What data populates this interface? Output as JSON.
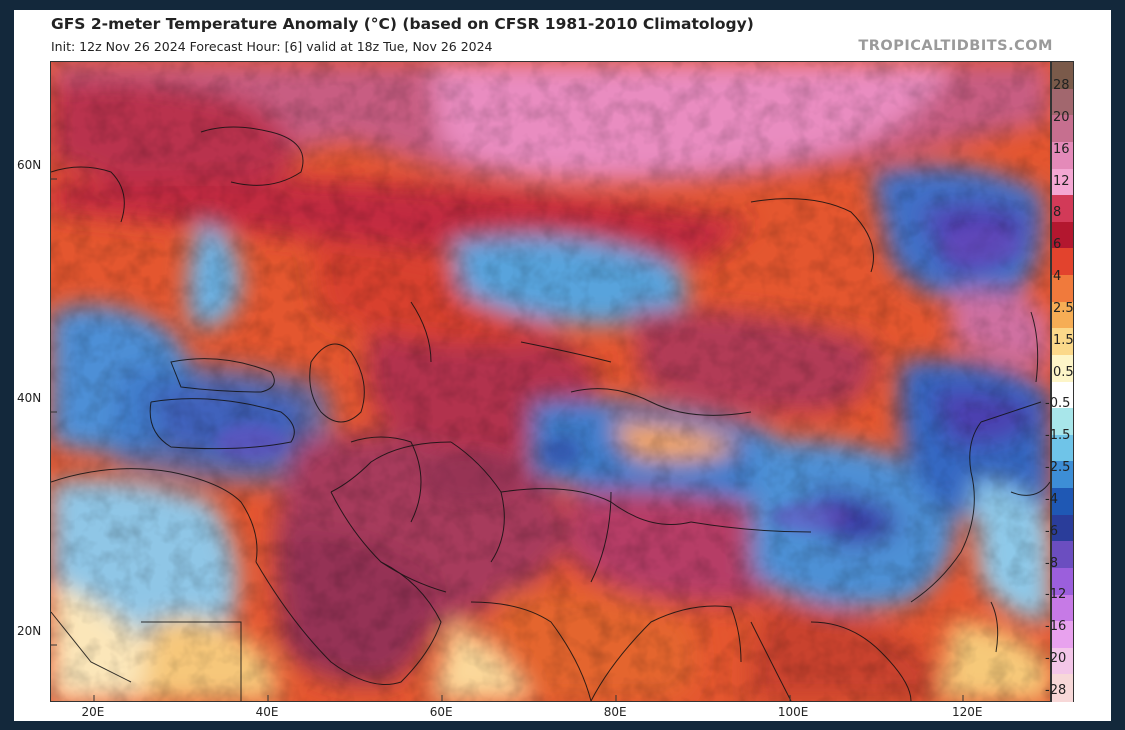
{
  "header": {
    "title": "GFS 2-meter Temperature Anomaly (°C) (based on CFSR 1981-2010 Climatology)",
    "subtitle": "Init: 12z Nov 26 2024   Forecast Hour: [6]   valid at 18z Tue, Nov 26 2024",
    "brand": "TROPICALTIDBITS.COM"
  },
  "map": {
    "lon_range": [
      15,
      130
    ],
    "lat_range": [
      14,
      69
    ],
    "lat_labels": [
      "60N",
      "40N",
      "20N"
    ],
    "lat_values": [
      60,
      40,
      20
    ],
    "lon_labels": [
      "20E",
      "40E",
      "60E",
      "80E",
      "100E",
      "120E"
    ],
    "lon_values": [
      20,
      40,
      60,
      80,
      100,
      120
    ]
  },
  "colorbar": {
    "labels": [
      "28",
      "20",
      "16",
      "12",
      "8",
      "6",
      "4",
      "2.5",
      "1.5",
      "0.5",
      "-0.5",
      "-1.5",
      "-2.5",
      "-4",
      "-6",
      "-8",
      "-12",
      "-16",
      "-20",
      "-28"
    ],
    "colors": [
      "#7a5a4a",
      "#a2676e",
      "#c66f8f",
      "#e48ab9",
      "#f4a7d3",
      "#d23a58",
      "#b3172f",
      "#e2432d",
      "#f07a3c",
      "#f6ad55",
      "#fbd88a",
      "#fdf5c8",
      "#ffffff",
      "#a8e6ea",
      "#6fc4e8",
      "#3d8ed6",
      "#1f58b4",
      "#2a3d9a",
      "#6b4ec0",
      "#9b5fdc",
      "#c67ae6",
      "#e8a2ee",
      "#f3c6e8",
      "#f7d8d8"
    ]
  }
}
